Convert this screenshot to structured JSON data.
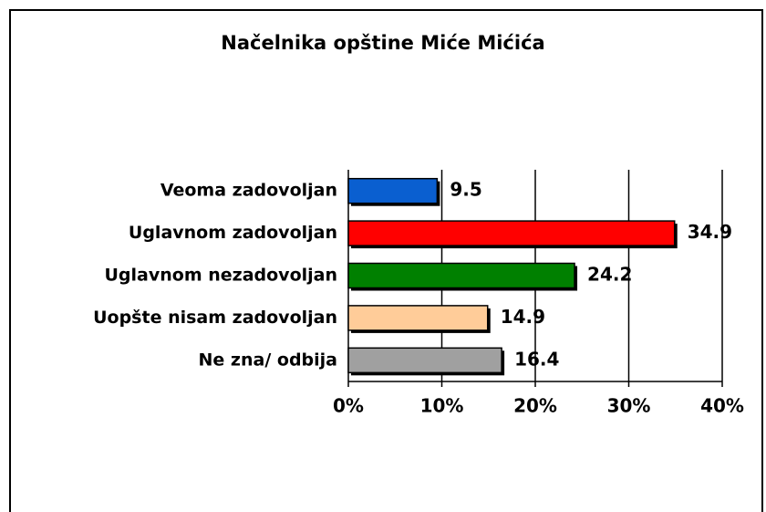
{
  "chart_data": {
    "type": "bar",
    "orientation": "horizontal",
    "title": "Načelnika opštine  Miće Mićića",
    "categories": [
      "Veoma zadovoljan",
      "Uglavnom zadovoljan",
      "Uglavnom nezadovoljan",
      "Uopšte nisam zadovoljan",
      "Ne zna/ odbija"
    ],
    "values": [
      9.5,
      34.9,
      24.2,
      14.9,
      16.4
    ],
    "colors": [
      "#0a5fd0",
      "#ff0000",
      "#008000",
      "#ffcc99",
      "#a0a0a0"
    ],
    "xlim": [
      0,
      40
    ],
    "xticks": [
      {
        "value": 0,
        "label": "0%"
      },
      {
        "value": 10,
        "label": "10%"
      },
      {
        "value": 20,
        "label": "20%"
      },
      {
        "value": 30,
        "label": "30%"
      },
      {
        "value": 40,
        "label": "40%"
      }
    ],
    "grid": true
  }
}
